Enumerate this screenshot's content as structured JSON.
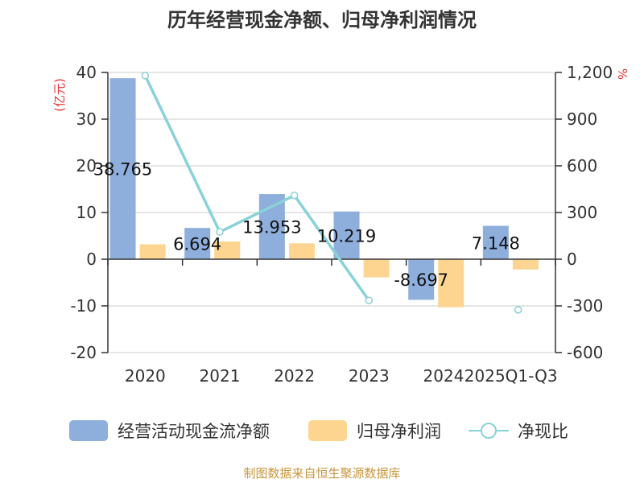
{
  "title": "历年经营现金净额、归母净利润情况",
  "left_unit": "(亿元)",
  "right_unit": "%",
  "source": "制图数据来自恒生聚源数据库",
  "colors": {
    "cash_flow": "#8eaedc",
    "net_profit": "#fdd591",
    "ratio": "#88d2d8"
  },
  "chart_data": {
    "type": "bar",
    "categories": [
      "2020",
      "2021",
      "2022",
      "2023",
      "2024",
      "2025Q1-Q3"
    ],
    "series": [
      {
        "name": "经营活动现金流净额",
        "type": "bar",
        "axis": "left",
        "values": [
          38.765,
          6.694,
          13.953,
          10.219,
          -8.697,
          7.148
        ],
        "labels": [
          "38.765",
          "6.694",
          "13.953",
          "10.219",
          "-8.697",
          "7.148"
        ]
      },
      {
        "name": "归母净利润",
        "type": "bar",
        "axis": "left",
        "values": [
          3.2,
          3.8,
          3.4,
          -3.9,
          -10.3,
          -2.2
        ]
      },
      {
        "name": "净现比",
        "type": "line",
        "axis": "right",
        "values": [
          1180,
          175,
          410,
          -265,
          null,
          -325
        ]
      }
    ],
    "y_left": {
      "min": -20,
      "max": 40,
      "ticks": [
        -20,
        -10,
        0,
        10,
        20,
        30,
        40
      ],
      "tick_labels": [
        "-20",
        "-10",
        "0",
        "10",
        "20",
        "30",
        "40"
      ]
    },
    "y_right": {
      "min": -600,
      "max": 1200,
      "ticks": [
        -600,
        -300,
        0,
        300,
        600,
        900,
        1200
      ],
      "tick_labels": [
        "-600",
        "-300",
        "0",
        "300",
        "600",
        "900",
        "1,200"
      ]
    },
    "grid": true,
    "legend_position": "bottom"
  }
}
